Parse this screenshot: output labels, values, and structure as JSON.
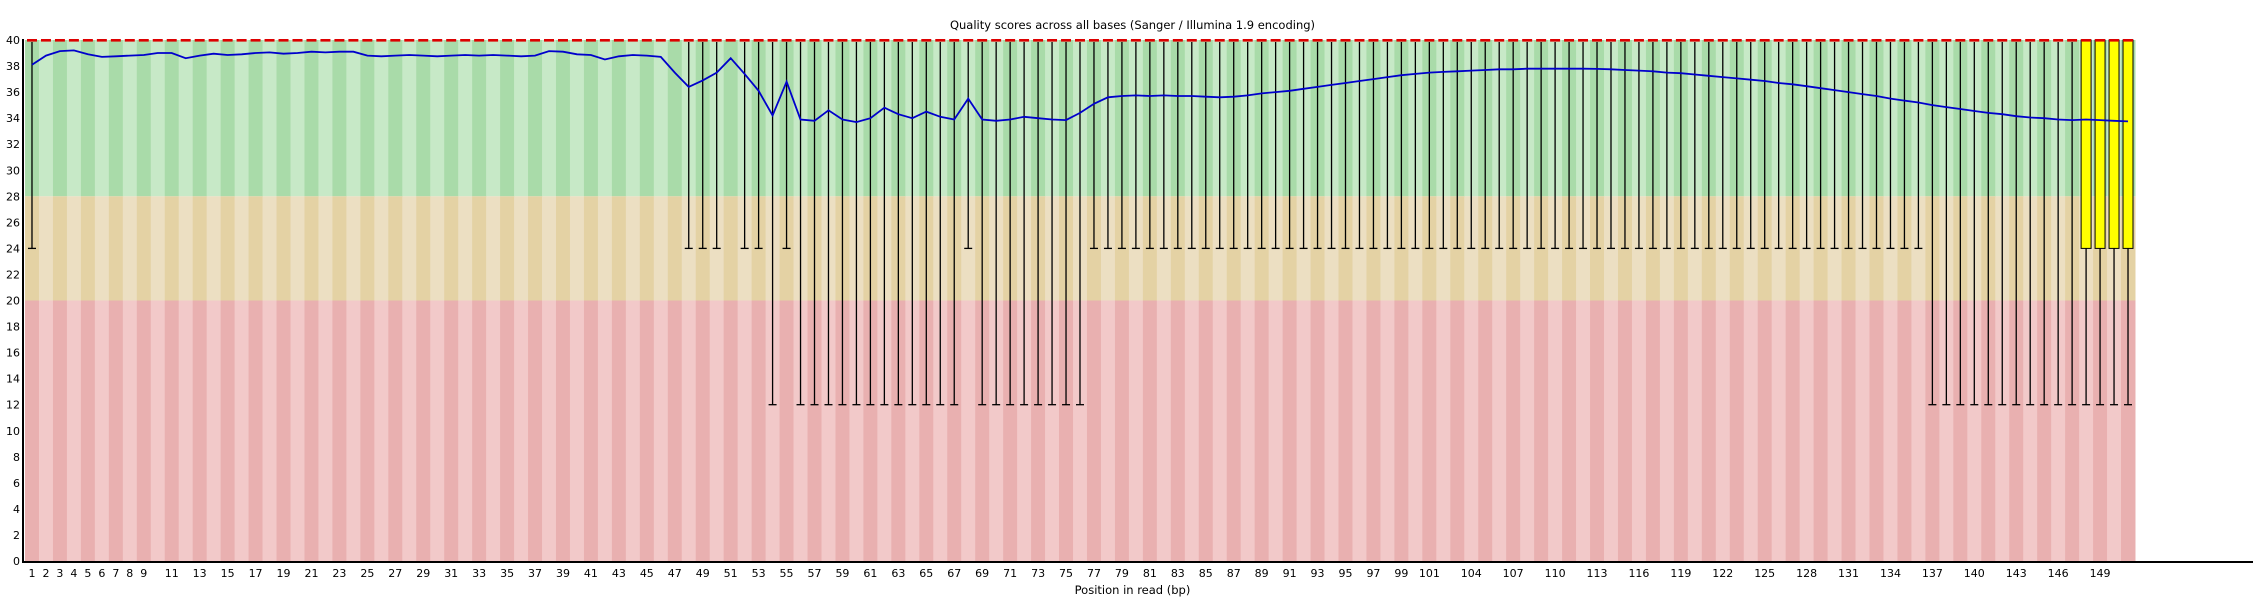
{
  "title": "Quality scores across all bases (Sanger / Illumina 1.9 encoding)",
  "x_axis_label": "Position in read (bp)",
  "colors": {
    "band_good_light": "#c7e9c7",
    "band_good_dark": "#a9dba9",
    "band_medium_light": "#ecdfc2",
    "band_medium_dark": "#e4d2a4",
    "band_poor_light": "#f2c9c9",
    "band_poor_dark": "#e9b0b0",
    "mean_line": "#0000cc",
    "median_dash": "#dd0000",
    "box_fill": "#ffff00",
    "box_border": "#000000",
    "axis": "#000000"
  },
  "chart_data": {
    "type": "boxplot+line",
    "n_positions": 151,
    "ylim": [
      0,
      40
    ],
    "grid": false,
    "bands": {
      "good": [
        28,
        40
      ],
      "medium": [
        20,
        28
      ],
      "poor": [
        0,
        20
      ]
    },
    "y_ticks": [
      0,
      2,
      4,
      6,
      8,
      10,
      12,
      14,
      16,
      18,
      20,
      22,
      24,
      26,
      28,
      30,
      32,
      34,
      36,
      38,
      40
    ],
    "x_tick_labels": [
      1,
      2,
      3,
      4,
      5,
      6,
      7,
      8,
      9,
      11,
      13,
      15,
      17,
      19,
      21,
      23,
      25,
      27,
      29,
      31,
      33,
      35,
      37,
      39,
      41,
      43,
      45,
      47,
      49,
      51,
      53,
      55,
      57,
      59,
      61,
      63,
      65,
      67,
      69,
      71,
      73,
      75,
      77,
      79,
      81,
      83,
      85,
      87,
      89,
      91,
      93,
      95,
      97,
      99,
      101,
      104,
      107,
      110,
      113,
      116,
      119,
      122,
      125,
      128,
      131,
      134,
      137,
      140,
      143,
      146,
      149
    ],
    "median_q": 40,
    "mean_series": [
      38.1,
      38.8,
      39.15,
      39.2,
      38.9,
      38.7,
      38.75,
      38.8,
      38.85,
      39.0,
      39.0,
      38.6,
      38.8,
      38.95,
      38.85,
      38.9,
      39.0,
      39.05,
      38.95,
      39.0,
      39.1,
      39.05,
      39.1,
      39.1,
      38.8,
      38.75,
      38.8,
      38.85,
      38.8,
      38.75,
      38.8,
      38.85,
      38.8,
      38.85,
      38.8,
      38.75,
      38.8,
      39.15,
      39.1,
      38.9,
      38.85,
      38.5,
      38.75,
      38.85,
      38.8,
      38.7,
      37.5,
      36.4,
      36.9,
      37.5,
      38.6,
      37.4,
      36.1,
      34.2,
      36.8,
      33.9,
      33.8,
      34.6,
      33.9,
      33.7,
      34.0,
      34.8,
      34.3,
      34.0,
      34.5,
      34.1,
      33.9,
      35.5,
      33.9,
      33.8,
      33.9,
      34.1,
      34.0,
      33.9,
      33.85,
      34.4,
      35.1,
      35.6,
      35.7,
      35.75,
      35.7,
      35.75,
      35.7,
      35.7,
      35.65,
      35.6,
      35.65,
      35.75,
      35.9,
      36.0,
      36.1,
      36.25,
      36.4,
      36.55,
      36.7,
      36.85,
      37.0,
      37.15,
      37.3,
      37.4,
      37.5,
      37.55,
      37.6,
      37.65,
      37.7,
      37.75,
      37.75,
      37.8,
      37.8,
      37.8,
      37.8,
      37.8,
      37.78,
      37.75,
      37.7,
      37.65,
      37.6,
      37.5,
      37.45,
      37.35,
      37.25,
      37.15,
      37.05,
      36.95,
      36.85,
      36.7,
      36.6,
      36.45,
      36.3,
      36.15,
      36.0,
      35.85,
      35.7,
      35.5,
      35.35,
      35.2,
      35.0,
      34.85,
      34.7,
      34.55,
      34.4,
      34.3,
      34.15,
      34.05,
      34.0,
      33.9,
      33.85,
      33.9,
      33.85,
      33.8,
      33.75
    ],
    "lower_whisker": [
      24,
      null,
      null,
      null,
      null,
      null,
      null,
      null,
      null,
      null,
      null,
      null,
      null,
      null,
      null,
      null,
      null,
      null,
      null,
      null,
      null,
      null,
      null,
      null,
      null,
      null,
      null,
      null,
      null,
      null,
      null,
      null,
      null,
      null,
      null,
      null,
      null,
      null,
      null,
      null,
      null,
      null,
      null,
      null,
      null,
      null,
      null,
      24,
      24,
      24,
      null,
      24,
      24,
      12,
      24,
      12,
      12,
      12,
      12,
      12,
      12,
      12,
      12,
      12,
      12,
      12,
      12,
      24,
      12,
      12,
      12,
      12,
      12,
      12,
      12,
      12,
      24,
      24,
      24,
      24,
      24,
      24,
      24,
      24,
      24,
      24,
      24,
      24,
      24,
      24,
      24,
      24,
      24,
      24,
      24,
      24,
      24,
      24,
      24,
      24,
      24,
      24,
      24,
      24,
      24,
      24,
      24,
      24,
      24,
      24,
      24,
      24,
      24,
      24,
      24,
      24,
      24,
      24,
      24,
      24,
      24,
      24,
      24,
      24,
      24,
      24,
      24,
      24,
      24,
      24,
      24,
      24,
      24,
      24,
      24,
      24,
      12,
      12,
      12,
      12,
      12,
      12,
      12,
      12,
      12,
      12,
      12,
      12,
      12,
      12,
      12
    ],
    "boxes": [
      {
        "pos": 148,
        "q1": 24,
        "q3": 40
      },
      {
        "pos": 149,
        "q1": 24,
        "q3": 40
      },
      {
        "pos": 150,
        "q1": 24,
        "q3": 40
      },
      {
        "pos": 151,
        "q1": 24,
        "q3": 40
      }
    ]
  }
}
